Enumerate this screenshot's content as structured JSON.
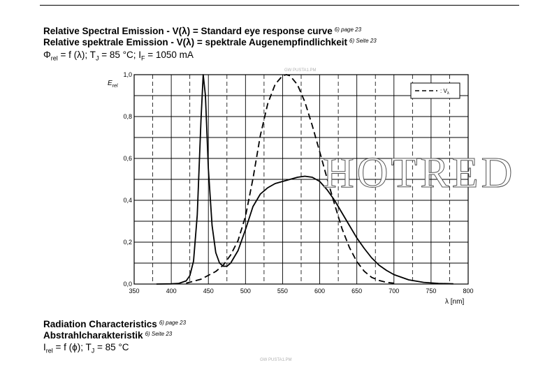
{
  "header": {
    "title_en": "Relative Spectral Emission - V(λ) = Standard eye response curve",
    "title_en_ref": "6) page 23",
    "title_de": "Relative spektrale Emission - V(λ) = spektrale Augenempfindlichkeit",
    "title_de_ref": "6) Seite 23",
    "formula_phi": "Φ",
    "formula_phi_sub": "rel",
    "formula_mid1": " = f (λ); T",
    "formula_tj_sub": "J",
    "formula_mid2": " = 85 °C; I",
    "formula_if_sub": "F",
    "formula_end": " = 1050 mA"
  },
  "footer": {
    "title_en": "Radiation Characteristics",
    "title_en_ref": "6) page 23",
    "title_de": "Abstrahlcharakteristik",
    "title_de_ref": "6) Seite 23",
    "formula_i": "I",
    "formula_i_sub": "rel",
    "formula_mid": " = f (ϕ); T",
    "formula_tj_sub": "J",
    "formula_end": " = 85 °C"
  },
  "watermarks": {
    "top": "GW PUSTA1.PM",
    "bottom": "GW PUSTA1.PM",
    "overlay": "HOTRED"
  },
  "colors": {
    "line": "#000000",
    "grid": "#000000",
    "overlay": "#ffffff"
  },
  "chart_data": {
    "type": "line",
    "ylabel": "E",
    "ylabel_sub": "rel",
    "xlabel": "λ [nm]",
    "xlim": [
      350,
      800
    ],
    "ylim": [
      0,
      1.0
    ],
    "x_ticks": [
      350,
      400,
      450,
      500,
      550,
      600,
      650,
      700,
      750,
      800
    ],
    "y_ticks": [
      0,
      0.2,
      0.4,
      0.6,
      0.8,
      1.0
    ],
    "x_tick_labels": [
      "350",
      "400",
      "450",
      "500",
      "550",
      "600",
      "650",
      "700",
      "750",
      "800"
    ],
    "y_tick_labels": [
      "0,0",
      "0,2",
      "0,4",
      "0,6",
      "0,8",
      "1,0"
    ],
    "grid": true,
    "legend_position": "top-right",
    "legend_label": ": V",
    "legend_label_sub": "λ",
    "series": [
      {
        "style": "solid",
        "x": [
          380,
          400,
          410,
          420,
          425,
          430,
          435,
          440,
          443,
          446,
          450,
          455,
          460,
          465,
          470,
          475,
          480,
          490,
          500,
          510,
          520,
          530,
          540,
          550,
          560,
          570,
          580,
          590,
          600,
          610,
          620,
          630,
          640,
          650,
          660,
          670,
          680,
          690,
          700,
          720,
          740,
          760,
          780
        ],
        "y": [
          0,
          0.001,
          0.003,
          0.015,
          0.04,
          0.11,
          0.33,
          0.78,
          1.0,
          0.9,
          0.55,
          0.28,
          0.15,
          0.1,
          0.085,
          0.085,
          0.1,
          0.16,
          0.26,
          0.37,
          0.43,
          0.46,
          0.48,
          0.49,
          0.5,
          0.51,
          0.515,
          0.51,
          0.49,
          0.45,
          0.4,
          0.34,
          0.28,
          0.22,
          0.17,
          0.125,
          0.09,
          0.065,
          0.045,
          0.02,
          0.008,
          0.003,
          0.001
        ]
      },
      {
        "name": "Vλ",
        "style": "dashed",
        "x": [
          420,
          440,
          460,
          470,
          480,
          490,
          500,
          510,
          520,
          530,
          540,
          550,
          555,
          560,
          570,
          580,
          590,
          600,
          610,
          620,
          630,
          640,
          650,
          660,
          670,
          680,
          690,
          700
        ],
        "y": [
          0.004,
          0.023,
          0.06,
          0.09,
          0.139,
          0.208,
          0.323,
          0.503,
          0.71,
          0.862,
          0.954,
          0.995,
          1.0,
          0.995,
          0.952,
          0.87,
          0.757,
          0.631,
          0.503,
          0.381,
          0.265,
          0.175,
          0.107,
          0.061,
          0.032,
          0.017,
          0.008,
          0.004
        ]
      }
    ]
  }
}
